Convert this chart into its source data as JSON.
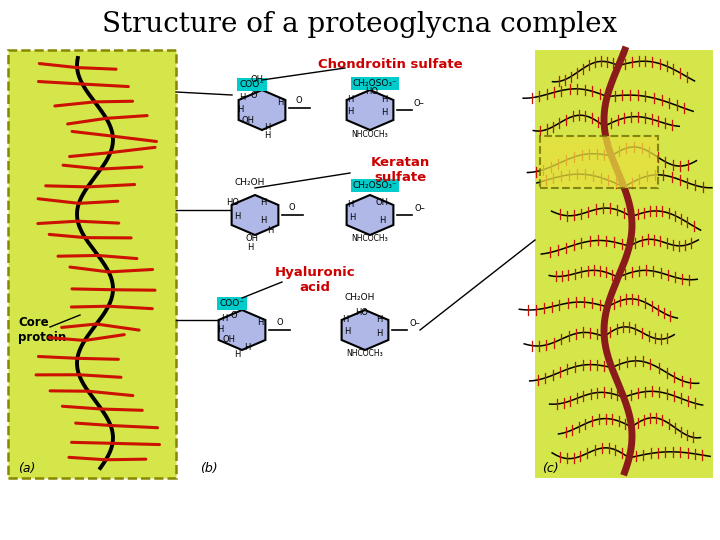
{
  "title": "Structure of a proteoglycna complex",
  "title_fontsize": 20,
  "bg_color": "#ffffff",
  "panel_a_bg": "#d4e64a",
  "panel_c_bg": "#d4e64a",
  "dashed_box_color": "#888800",
  "core_protein_color": "#000000",
  "gag_chain_color": "#cc1100",
  "hyaluronic_color": "#8b1a1a",
  "label_a": "(a)",
  "label_b": "(b)",
  "label_c": "(c)",
  "core_protein_label": "Core\nprotein",
  "chondroitin_label": "Chondroitin sulfate",
  "keratan_label": "Keratan\nsulfate",
  "hyaluronic_label": "Hyaluronic\nacid",
  "sugar_fill": "#b0b8e8",
  "sugar_edge": "#000000",
  "cyan_box": "#00cccc",
  "red_label_color": "#cc0000"
}
